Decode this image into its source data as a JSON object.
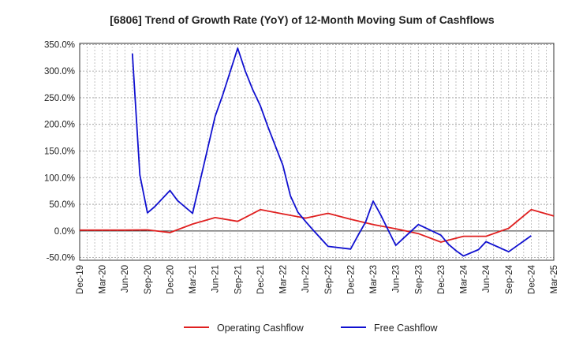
{
  "chart_data": {
    "type": "line",
    "title": "[6806]  Trend of Growth Rate (YoY) of 12-Month Moving Sum of Cashflows",
    "x_tick_labels": [
      "Dec-19",
      "Mar-20",
      "Jun-20",
      "Sep-20",
      "Dec-20",
      "Mar-21",
      "Jun-21",
      "Sep-21",
      "Dec-21",
      "Mar-22",
      "Jun-22",
      "Sep-22",
      "Dec-22",
      "Mar-23",
      "Jun-23",
      "Sep-23",
      "Dec-23",
      "Mar-24",
      "Jun-24",
      "Sep-24",
      "Dec-24",
      "Mar-25"
    ],
    "y_tick_labels": [
      "350.0%",
      "300.0%",
      "250.0%",
      "200.0%",
      "150.0%",
      "100.0%",
      "50.0%",
      "0.0%",
      "-50.0%"
    ],
    "y_tick_values": [
      350,
      300,
      250,
      200,
      150,
      100,
      50,
      0,
      -50
    ],
    "ylim": [
      -55,
      352
    ],
    "x_range_months": [
      0,
      63
    ],
    "grid": true,
    "legend_position": "bottom-center",
    "series": [
      {
        "name": "Operating Cashflow",
        "color": "#e02020",
        "points": [
          [
            0,
            1.5
          ],
          [
            3,
            1.5
          ],
          [
            6,
            1.5
          ],
          [
            9,
            2
          ],
          [
            12,
            -3
          ],
          [
            15,
            13
          ],
          [
            18,
            25
          ],
          [
            21,
            18
          ],
          [
            24,
            40
          ],
          [
            27,
            32
          ],
          [
            30,
            24
          ],
          [
            33,
            33
          ],
          [
            36,
            22
          ],
          [
            39,
            12
          ],
          [
            42,
            4
          ],
          [
            45,
            -5
          ],
          [
            48,
            -21
          ],
          [
            51,
            -10
          ],
          [
            54,
            -10
          ],
          [
            57,
            5
          ],
          [
            60,
            40
          ],
          [
            63,
            28
          ]
        ]
      },
      {
        "name": "Free Cashflow",
        "color": "#1010d0",
        "points": [
          [
            7,
            333
          ],
          [
            8,
            105
          ],
          [
            9,
            34
          ],
          [
            10,
            46
          ],
          [
            12,
            76
          ],
          [
            13,
            57
          ],
          [
            15,
            33
          ],
          [
            18,
            215
          ],
          [
            19,
            255
          ],
          [
            21,
            343
          ],
          [
            22,
            300
          ],
          [
            23,
            265
          ],
          [
            24,
            235
          ],
          [
            25,
            196
          ],
          [
            27,
            123
          ],
          [
            28,
            66
          ],
          [
            29,
            35
          ],
          [
            30,
            18
          ],
          [
            31,
            2
          ],
          [
            33,
            -29
          ],
          [
            36,
            -34
          ],
          [
            37,
            -8
          ],
          [
            38,
            17
          ],
          [
            39,
            56
          ],
          [
            40,
            30
          ],
          [
            42,
            -27
          ],
          [
            45,
            12
          ],
          [
            48,
            -8
          ],
          [
            49,
            -25
          ],
          [
            50,
            -37
          ],
          [
            51,
            -47
          ],
          [
            53,
            -35
          ],
          [
            54,
            -20
          ],
          [
            57,
            -39
          ],
          [
            60,
            -9
          ]
        ]
      }
    ]
  }
}
